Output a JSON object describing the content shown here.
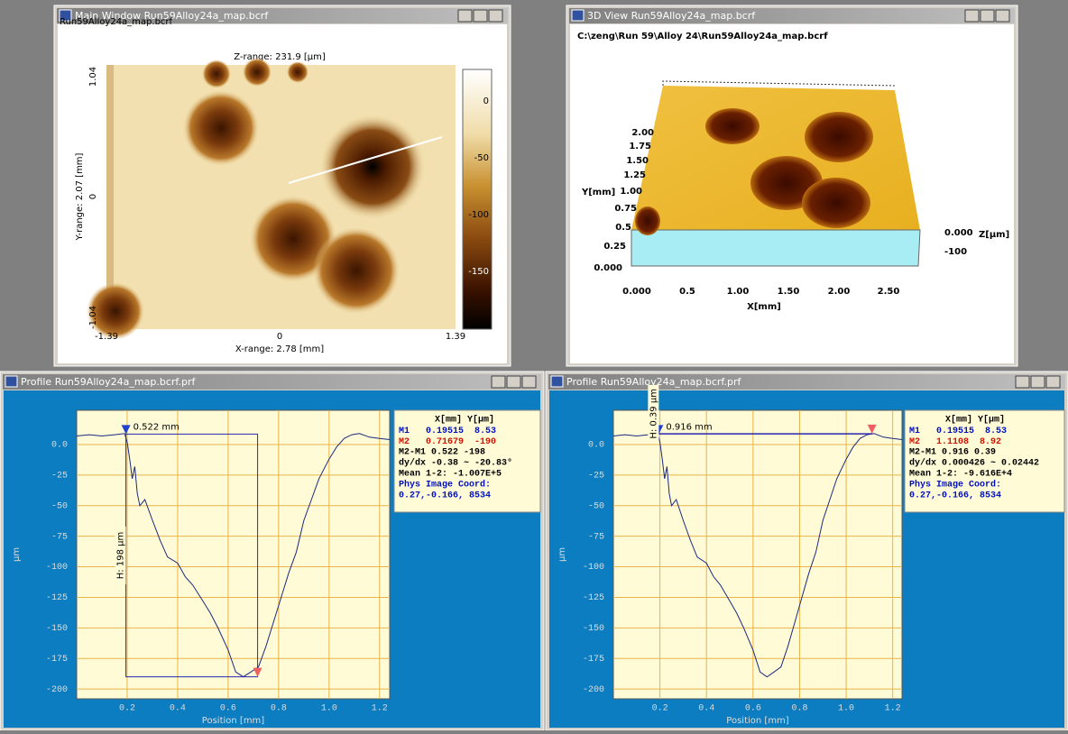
{
  "main_window": {
    "title": "Main Window Run59Alloy24a_map.bcrf",
    "file": "Run59Alloy24a_map.bcrf",
    "z_range": "Z-range:  231.9 [µm]",
    "y_range": "Y-range:  2.07 [mm]",
    "x_range": "X-range:  2.78 [mm]",
    "x_ticks": [
      "-1.39",
      "0",
      "1.39"
    ],
    "y_ticks": [
      "1.04",
      "0",
      "-1.04"
    ],
    "colorbar_ticks": [
      "0",
      "-50",
      "-100",
      "-150"
    ]
  },
  "view_3d": {
    "title": "3D View Run59Alloy24a_map.bcrf",
    "path": "C:\\zeng\\Run 59\\Alloy 24\\Run59Alloy24a_map.bcrf",
    "y_label": "Y[mm]",
    "x_label": "X[mm]",
    "z_label": "Z[µm]",
    "y_ticks": [
      "2.00",
      "1.75",
      "1.50",
      "1.25",
      "1.00",
      "0.75",
      "0.5",
      "0.25",
      "0.000"
    ],
    "x_ticks": [
      "0.000",
      "0.5",
      "1.00",
      "1.50",
      "2.00",
      "2.50"
    ],
    "z_ticks": [
      "0.000",
      "-100"
    ]
  },
  "profiles": [
    {
      "title": "Profile Run59Alloy24a_map.bcrf.prf",
      "y_label": "µm",
      "x_label": "Position [mm]",
      "xlim": [
        0,
        1.24
      ],
      "ylim": [
        -208,
        28
      ],
      "xticks": [
        0.2,
        0.4,
        0.6,
        0.8,
        {
          "value": 1,
          "label": "1.0"
        },
        1.2
      ],
      "yticks": [
        {
          "value": 0,
          "label": "0.0"
        },
        -25,
        -50,
        -75,
        -100,
        -125,
        -150,
        -175,
        -200
      ],
      "x": [
        0,
        0.05,
        0.1,
        0.15,
        0.19,
        0.2,
        0.21,
        0.22,
        0.23,
        0.24,
        0.25,
        0.27,
        0.3,
        0.33,
        0.36,
        0.4,
        0.43,
        0.46,
        0.5,
        0.53,
        0.56,
        0.6,
        0.63,
        0.66,
        0.69,
        0.72,
        0.75,
        0.78,
        0.81,
        0.84,
        0.87,
        0.9,
        0.93,
        0.96,
        1.0,
        1.03,
        1.06,
        1.09,
        1.12,
        1.16,
        1.2,
        1.24
      ],
      "y": [
        7,
        8,
        7,
        8,
        9,
        2,
        -12,
        -28,
        -18,
        -40,
        -50,
        -45,
        -62,
        -78,
        -92,
        -97,
        -108,
        -115,
        -128,
        -138,
        -150,
        -168,
        -186,
        -190,
        -186,
        -182,
        -165,
        -145,
        -125,
        -105,
        -88,
        -62,
        -45,
        -28,
        -12,
        -2,
        5,
        8,
        9,
        6,
        5,
        4
      ],
      "marker_text": "0.522 mm",
      "height_text": "H:  198 µm",
      "readout": {
        "header": "X[mm]  Y[µm]",
        "m1": {
          "label": "M1",
          "x": 0.19515,
          "y": 8.53
        },
        "m2": {
          "label": "M2",
          "x": 0.71679,
          "y": -190
        },
        "lines": [
          "M2-M1 0.522  -198",
          "dy/dx -0.38 ~ -20.83°",
          "Mean 1-2: -1.007E+5",
          "Phys Image Coord:",
          "0.27,-0.166, 8534"
        ]
      }
    },
    {
      "title": "Profile Run59Alloy24a_map.bcrf.prf",
      "y_label": "µm",
      "x_label": "Position [mm]",
      "xlim": [
        0,
        1.24
      ],
      "ylim": [
        -208,
        28
      ],
      "xticks": [
        0.2,
        0.4,
        0.6,
        0.8,
        {
          "value": 1,
          "label": "1.0"
        },
        1.2
      ],
      "yticks": [
        {
          "value": 0,
          "label": "0.0"
        },
        -25,
        -50,
        -75,
        -100,
        -125,
        -150,
        -175,
        -200
      ],
      "x": [
        0,
        0.05,
        0.1,
        0.15,
        0.19,
        0.2,
        0.21,
        0.22,
        0.23,
        0.24,
        0.25,
        0.27,
        0.3,
        0.33,
        0.36,
        0.4,
        0.43,
        0.46,
        0.5,
        0.53,
        0.56,
        0.6,
        0.63,
        0.66,
        0.69,
        0.72,
        0.75,
        0.78,
        0.81,
        0.84,
        0.87,
        0.9,
        0.93,
        0.96,
        1.0,
        1.03,
        1.06,
        1.09,
        1.12,
        1.16,
        1.2,
        1.24
      ],
      "y": [
        7,
        8,
        7,
        8,
        9,
        2,
        -12,
        -28,
        -18,
        -40,
        -50,
        -45,
        -62,
        -78,
        -92,
        -97,
        -108,
        -115,
        -128,
        -138,
        -150,
        -168,
        -186,
        -190,
        -186,
        -182,
        -165,
        -145,
        -125,
        -105,
        -88,
        -62,
        -45,
        -28,
        -12,
        -2,
        5,
        8,
        9,
        6,
        5,
        4
      ],
      "marker_text": "0.916 mm",
      "height_text": "H: 0.39 µm",
      "readout": {
        "header": "X[mm]  Y[µm]",
        "m1": {
          "label": "M1",
          "x": 0.19515,
          "y": 8.53
        },
        "m2": {
          "label": "M2",
          "x": 1.1108,
          "y": 8.92
        },
        "lines": [
          "M2-M1 0.916 0.39",
          "dy/dx 0.000426 ~ 0.02442",
          "Mean 1-2: -9.616E+4",
          "Phys Image Coord:",
          "0.27,-0.166, 8534"
        ]
      }
    }
  ]
}
